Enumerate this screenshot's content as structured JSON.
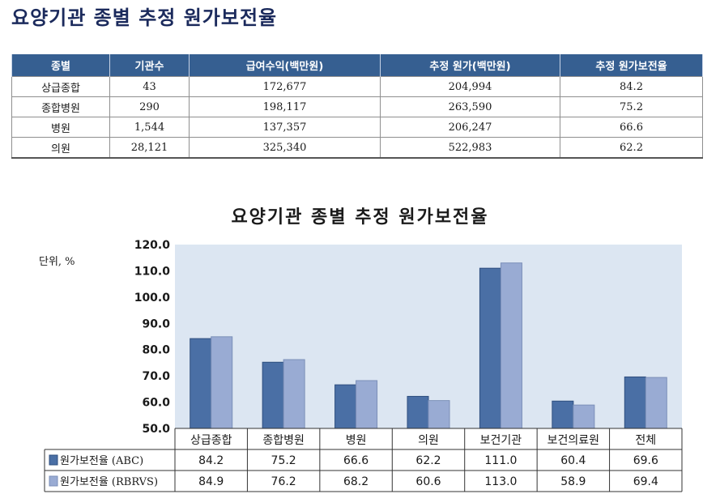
{
  "page_title": "요양기관 종별 추정 원가보전율",
  "table": {
    "headers": [
      "종별",
      "기관수",
      "급여수익(백만원)",
      "추정 원가(백만원)",
      "추정 원가보전율"
    ],
    "rows": [
      [
        "상급종합",
        "43",
        "172,677",
        "204,994",
        "84.2"
      ],
      [
        "종합병원",
        "290",
        "198,117",
        "263,590",
        "75.2"
      ],
      [
        "병원",
        "1,544",
        "137,357",
        "206,247",
        "66.6"
      ],
      [
        "의원",
        "28,121",
        "325,340",
        "522,983",
        "62.2"
      ]
    ]
  },
  "chart_data": {
    "type": "bar",
    "title": "요양기관 종별 추정 원가보전율",
    "unit_label": "단위, %",
    "categories": [
      "상급종합",
      "종합병원",
      "병원",
      "의원",
      "보건기관",
      "보건의료원",
      "전체"
    ],
    "series": [
      {
        "name": "원가보전율 (ABC)",
        "color": "#4a6fa5",
        "values": [
          84.2,
          75.2,
          66.6,
          62.2,
          111.0,
          60.4,
          69.6
        ],
        "labels": [
          "84.2",
          "75.2",
          "66.6",
          "62.2",
          "111.0",
          "60.4",
          "69.6"
        ]
      },
      {
        "name": "원가보전율 (RBRVS)",
        "color": "#99abd3",
        "values": [
          84.9,
          76.2,
          68.2,
          60.6,
          113.0,
          58.9,
          69.4
        ],
        "labels": [
          "84.9",
          "76.2",
          "68.2",
          "60.6",
          "113.0",
          "58.9",
          "69.4"
        ]
      }
    ],
    "ylim": [
      50,
      120
    ],
    "yticks": [
      "50.0",
      "60.0",
      "70.0",
      "80.0",
      "90.0",
      "100.0",
      "110.0",
      "120.0"
    ],
    "plot_background": "#dce6f2",
    "grid": false,
    "legend": "data-table"
  }
}
